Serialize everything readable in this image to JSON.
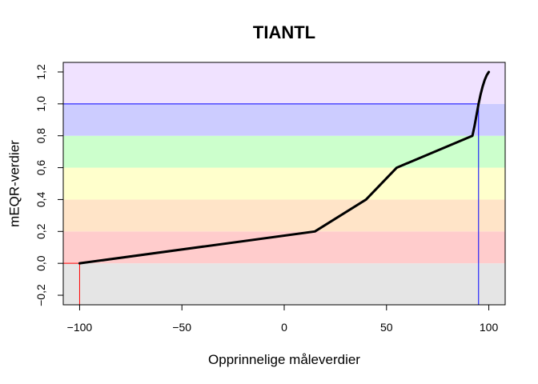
{
  "chart_data": {
    "type": "line",
    "title": "TIANTL",
    "xlabel": "Opprinnelige måleverdier",
    "ylabel": "mEQR-verdier",
    "xlim": [
      -108,
      108
    ],
    "ylim": [
      -0.26,
      1.26
    ],
    "x_ticks": [
      -100,
      -50,
      0,
      50,
      100
    ],
    "x_tick_labels": [
      "−100",
      "−50",
      "0",
      "50",
      "100"
    ],
    "y_ticks": [
      -0.2,
      0.0,
      0.2,
      0.4,
      0.6,
      0.8,
      1.0,
      1.2
    ],
    "y_tick_labels": [
      "−0,2",
      "0,0",
      "0,2",
      "0,4",
      "0,6",
      "0,8",
      "1,0",
      "1,2"
    ],
    "bands": [
      {
        "from": -0.26,
        "to": 0.0,
        "color": "#e5e5e5"
      },
      {
        "from": 0.0,
        "to": 0.2,
        "color": "#ffcccc"
      },
      {
        "from": 0.2,
        "to": 0.4,
        "color": "#ffe4c8"
      },
      {
        "from": 0.4,
        "to": 0.6,
        "color": "#ffffcc"
      },
      {
        "from": 0.6,
        "to": 0.8,
        "color": "#ccffcc"
      },
      {
        "from": 0.8,
        "to": 1.0,
        "color": "#ccccff"
      },
      {
        "from": 1.0,
        "to": 1.26,
        "color": "#f0e2ff"
      }
    ],
    "reference_lines": [
      {
        "orientation": "vertical",
        "x": -100,
        "y_from": -0.26,
        "y_to": 0.0,
        "color": "#ff0000"
      },
      {
        "orientation": "horizontal",
        "y": 0.0,
        "x_from": -108,
        "x_to": -100,
        "color": "#ff0000"
      },
      {
        "orientation": "vertical",
        "x": 95,
        "y_from": -0.26,
        "y_to": 1.0,
        "color": "#0000ff"
      },
      {
        "orientation": "horizontal",
        "y": 1.0,
        "x_from": -108,
        "x_to": 95,
        "color": "#0000ff"
      }
    ],
    "series": [
      {
        "color": "#000000",
        "x": [
          -100,
          15,
          40,
          55,
          92,
          93,
          94,
          95,
          96,
          97,
          98,
          99,
          100
        ],
        "y": [
          0.0,
          0.2,
          0.4,
          0.6,
          0.8,
          0.86,
          0.93,
          1.0,
          1.06,
          1.11,
          1.15,
          1.18,
          1.2
        ]
      }
    ],
    "grid": false,
    "legend": "none"
  }
}
